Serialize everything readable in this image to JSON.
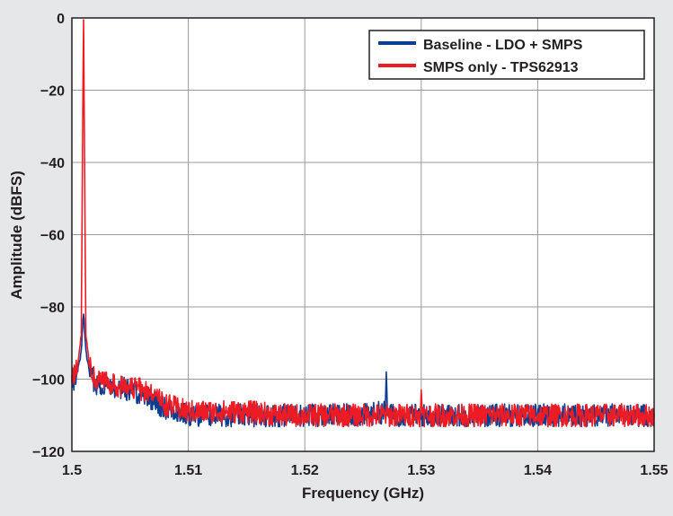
{
  "chart_data": {
    "type": "line",
    "title": "",
    "xlabel": "Frequency (GHz)",
    "ylabel": "Amplitude (dBFS)",
    "xlim": [
      1.5,
      1.55
    ],
    "ylim": [
      -120,
      0
    ],
    "x_ticks": [
      1.5,
      1.51,
      1.52,
      1.53,
      1.54,
      1.55
    ],
    "x_tick_labels": [
      "1.5",
      "1.51",
      "1.52",
      "1.53",
      "1.54",
      "1.55"
    ],
    "y_ticks": [
      0,
      -20,
      -40,
      -60,
      -80,
      -100,
      -120
    ],
    "y_tick_labels": [
      "0",
      "−20",
      "−40",
      "−60",
      "−80",
      "−100",
      "−120"
    ],
    "grid": true,
    "legend_position": "top-right",
    "series": [
      {
        "name": "Baseline - LDO + SMPS",
        "color": "#0b3d91",
        "x": [
          1.5,
          1.5005,
          1.5008,
          1.501,
          1.5012,
          1.5015,
          1.502,
          1.503,
          1.504,
          1.505,
          1.506,
          1.507,
          1.508,
          1.509,
          1.51,
          1.512,
          1.515,
          1.518,
          1.52,
          1.522,
          1.525,
          1.5269,
          1.527,
          1.5271,
          1.53,
          1.533,
          1.536,
          1.54,
          1.543,
          1.546,
          1.55
        ],
        "y": [
          -101,
          -98,
          -92,
          -82,
          -92,
          -98,
          -101,
          -102,
          -102,
          -103,
          -104,
          -106,
          -108,
          -109,
          -110,
          -110,
          -110,
          -110,
          -110,
          -110,
          -110,
          -109,
          -98,
          -110,
          -110,
          -110,
          -110,
          -110,
          -110,
          -110,
          -110
        ]
      },
      {
        "name": "SMPS only - TPS62913",
        "color": "#ed1c24",
        "x": [
          1.5,
          1.5005,
          1.5008,
          1.501,
          1.5012,
          1.5015,
          1.502,
          1.503,
          1.504,
          1.505,
          1.506,
          1.507,
          1.508,
          1.509,
          1.51,
          1.512,
          1.515,
          1.518,
          1.52,
          1.522,
          1.525,
          1.5299,
          1.53,
          1.5301,
          1.533,
          1.536,
          1.54,
          1.543,
          1.546,
          1.55
        ],
        "y": [
          -100,
          -96,
          -88,
          -0.5,
          -88,
          -96,
          -100,
          -101,
          -102,
          -102,
          -103,
          -105,
          -107,
          -108,
          -109,
          -109,
          -109,
          -110,
          -110,
          -110,
          -110,
          -110,
          -103,
          -110,
          -110,
          -110,
          -110,
          -110,
          -110,
          -110
        ]
      }
    ]
  }
}
